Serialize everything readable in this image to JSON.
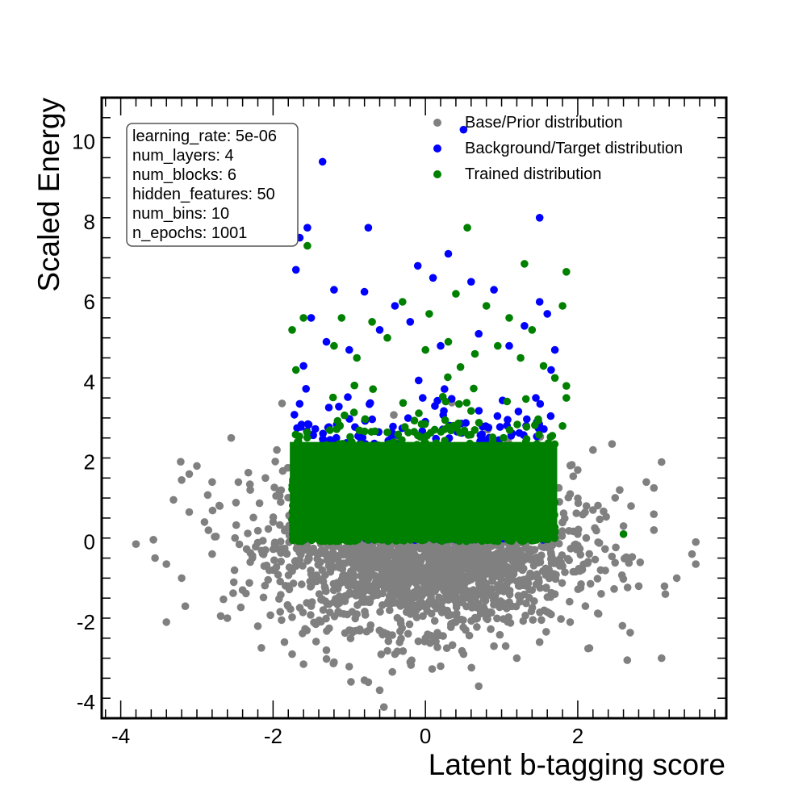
{
  "chart_data": {
    "type": "scatter",
    "title": "",
    "xlabel": "Latent b-tagging score",
    "ylabel": "Scaled Energy",
    "xlim": [
      -4.25,
      3.95
    ],
    "ylim": [
      -4.4,
      11.1
    ],
    "xticks": [
      -4,
      -2,
      0,
      2
    ],
    "yticks": [
      -4,
      -2,
      0,
      2,
      4,
      6,
      8,
      10
    ],
    "grid": false,
    "legend_position": "top-right",
    "colors": {
      "base": "#808080",
      "target": "#0000ff",
      "trained": "#008000"
    },
    "legend": [
      {
        "label": "Base/Prior distribution",
        "color": "#808080"
      },
      {
        "label": "Background/Target distribution",
        "color": "#0000ff"
      },
      {
        "label": "Trained distribution",
        "color": "#008000"
      }
    ],
    "info_box": [
      "learning_rate: 5e-06",
      "num_layers: 4",
      "num_blocks: 6",
      "hidden_features: 50",
      "num_bins: 10",
      "n_epochs: 1001"
    ],
    "series": [
      {
        "name": "Base/Prior distribution",
        "color": "#808080",
        "points": [
          [
            -3.8,
            -0.05
          ],
          [
            -3.55,
            -0.4
          ],
          [
            -3.4,
            -0.55
          ],
          [
            -3.4,
            -2.0
          ],
          [
            -3.2,
            -0.9
          ],
          [
            -3.2,
            1.55
          ],
          [
            -3.1,
            1.7
          ],
          [
            -3.1,
            0.75
          ],
          [
            -3.0,
            1.9
          ],
          [
            -2.9,
            0.5
          ],
          [
            -2.8,
            -0.3
          ],
          [
            -2.8,
            1.5
          ],
          [
            -2.6,
            -1.9
          ],
          [
            -2.55,
            2.6
          ],
          [
            -2.4,
            -1.2
          ],
          [
            -2.3,
            1.3
          ],
          [
            -2.2,
            -2.1
          ],
          [
            -2.1,
            1.6
          ],
          [
            -2.0,
            -0.7
          ],
          [
            -1.95,
            2.3
          ],
          [
            -1.85,
            -2.5
          ],
          [
            -1.75,
            -2.8
          ],
          [
            -1.6,
            -3.05
          ],
          [
            -1.5,
            -1.6
          ],
          [
            -1.3,
            -2.7
          ],
          [
            -1.2,
            -3.0
          ],
          [
            -1.0,
            -2.2
          ],
          [
            -0.8,
            -3.45
          ],
          [
            -0.75,
            -3.5
          ],
          [
            -0.6,
            -3.7
          ],
          [
            -0.4,
            -2.8
          ],
          [
            -0.2,
            -3.0
          ],
          [
            0.2,
            -3.1
          ],
          [
            0.5,
            -2.8
          ],
          [
            0.7,
            -3.6
          ],
          [
            0.9,
            -2.6
          ],
          [
            1.2,
            -2.9
          ],
          [
            1.5,
            -2.5
          ],
          [
            1.7,
            -1.3
          ],
          [
            1.9,
            -2.0
          ],
          [
            2.0,
            1.8
          ],
          [
            2.1,
            -1.6
          ],
          [
            2.2,
            2.3
          ],
          [
            2.3,
            -0.7
          ],
          [
            2.45,
            2.45
          ],
          [
            2.55,
            1.3
          ],
          [
            2.65,
            -2.95
          ],
          [
            2.7,
            0.9
          ],
          [
            2.8,
            -1.1
          ],
          [
            2.9,
            1.5
          ],
          [
            3.0,
            0.3
          ],
          [
            3.1,
            2.0
          ],
          [
            3.1,
            -2.9
          ],
          [
            3.15,
            -1.3
          ],
          [
            3.3,
            -0.9
          ],
          [
            3.5,
            -0.3
          ],
          [
            3.55,
            0.0
          ],
          [
            3.55,
            -0.55
          ],
          [
            3.0,
            1.35
          ],
          [
            2.6,
            0.4
          ],
          [
            -2.7,
            0.9
          ],
          [
            -2.5,
            0.1
          ],
          [
            -2.3,
            -0.5
          ],
          [
            -2.0,
            0.5
          ],
          [
            -1.8,
            -1.1
          ],
          [
            -1.5,
            -0.8
          ],
          [
            -1.2,
            -1.5
          ],
          [
            -0.9,
            -1.8
          ],
          [
            -0.5,
            -2.3
          ],
          [
            0.0,
            -2.4
          ],
          [
            0.4,
            -2.0
          ],
          [
            0.8,
            -1.9
          ],
          [
            1.1,
            -1.5
          ],
          [
            1.4,
            -1.2
          ],
          [
            1.8,
            -0.6
          ],
          [
            2.0,
            0.2
          ],
          [
            2.2,
            0.8
          ],
          [
            1.9,
            1.2
          ],
          [
            -1.9,
            1.0
          ],
          [
            -2.1,
            -0.2
          ],
          [
            -0.3,
            -1.1
          ],
          [
            0.3,
            -1.3
          ],
          [
            0.6,
            -0.9
          ],
          [
            -0.7,
            -0.6
          ],
          [
            1.0,
            -0.5
          ]
        ]
      },
      {
        "name": "Background/Target distribution",
        "color": "#0000ff",
        "points": [
          [
            -1.65,
            7.6
          ],
          [
            -1.55,
            7.85
          ],
          [
            -1.35,
            9.5
          ],
          [
            -0.75,
            7.85
          ],
          [
            -1.7,
            6.8
          ],
          [
            -1.5,
            5.6
          ],
          [
            -1.2,
            6.3
          ],
          [
            -0.8,
            6.25
          ],
          [
            -0.4,
            5.9
          ],
          [
            -0.1,
            6.9
          ],
          [
            0.1,
            6.6
          ],
          [
            0.3,
            7.2
          ],
          [
            0.5,
            10.3
          ],
          [
            0.6,
            6.5
          ],
          [
            0.9,
            6.3
          ],
          [
            1.5,
            8.1
          ],
          [
            1.5,
            6.0
          ],
          [
            1.6,
            5.7
          ],
          [
            1.7,
            4.8
          ],
          [
            1.65,
            4.3
          ],
          [
            -1.6,
            4.4
          ],
          [
            -1.3,
            5.0
          ],
          [
            -1.0,
            4.8
          ],
          [
            -0.6,
            5.3
          ],
          [
            -0.2,
            5.5
          ],
          [
            0.2,
            4.9
          ],
          [
            0.7,
            5.2
          ],
          [
            1.1,
            4.9
          ],
          [
            1.3,
            5.4
          ],
          [
            1.45,
            3.6
          ]
        ]
      },
      {
        "name": "Trained distribution",
        "color": "#008000",
        "points": [
          [
            -1.55,
            7.4
          ],
          [
            0.55,
            7.85
          ],
          [
            1.3,
            6.95
          ],
          [
            1.85,
            6.75
          ],
          [
            1.8,
            5.9
          ],
          [
            -1.75,
            5.3
          ],
          [
            -1.6,
            5.6
          ],
          [
            -1.1,
            5.6
          ],
          [
            -0.7,
            5.5
          ],
          [
            -0.3,
            6.0
          ],
          [
            0.05,
            5.7
          ],
          [
            0.4,
            6.2
          ],
          [
            0.8,
            5.9
          ],
          [
            1.1,
            5.6
          ],
          [
            1.4,
            5.3
          ],
          [
            1.7,
            4.1
          ],
          [
            1.85,
            3.9
          ],
          [
            1.85,
            3.6
          ],
          [
            1.8,
            2.9
          ],
          [
            2.6,
            0.2
          ],
          [
            -1.7,
            4.3
          ],
          [
            -1.2,
            4.9
          ],
          [
            -0.9,
            4.6
          ],
          [
            -0.5,
            5.1
          ],
          [
            0.0,
            4.8
          ],
          [
            0.3,
            5.0
          ],
          [
            0.65,
            4.7
          ],
          [
            0.95,
            4.9
          ],
          [
            1.25,
            4.6
          ],
          [
            1.55,
            4.4
          ]
        ]
      }
    ]
  }
}
